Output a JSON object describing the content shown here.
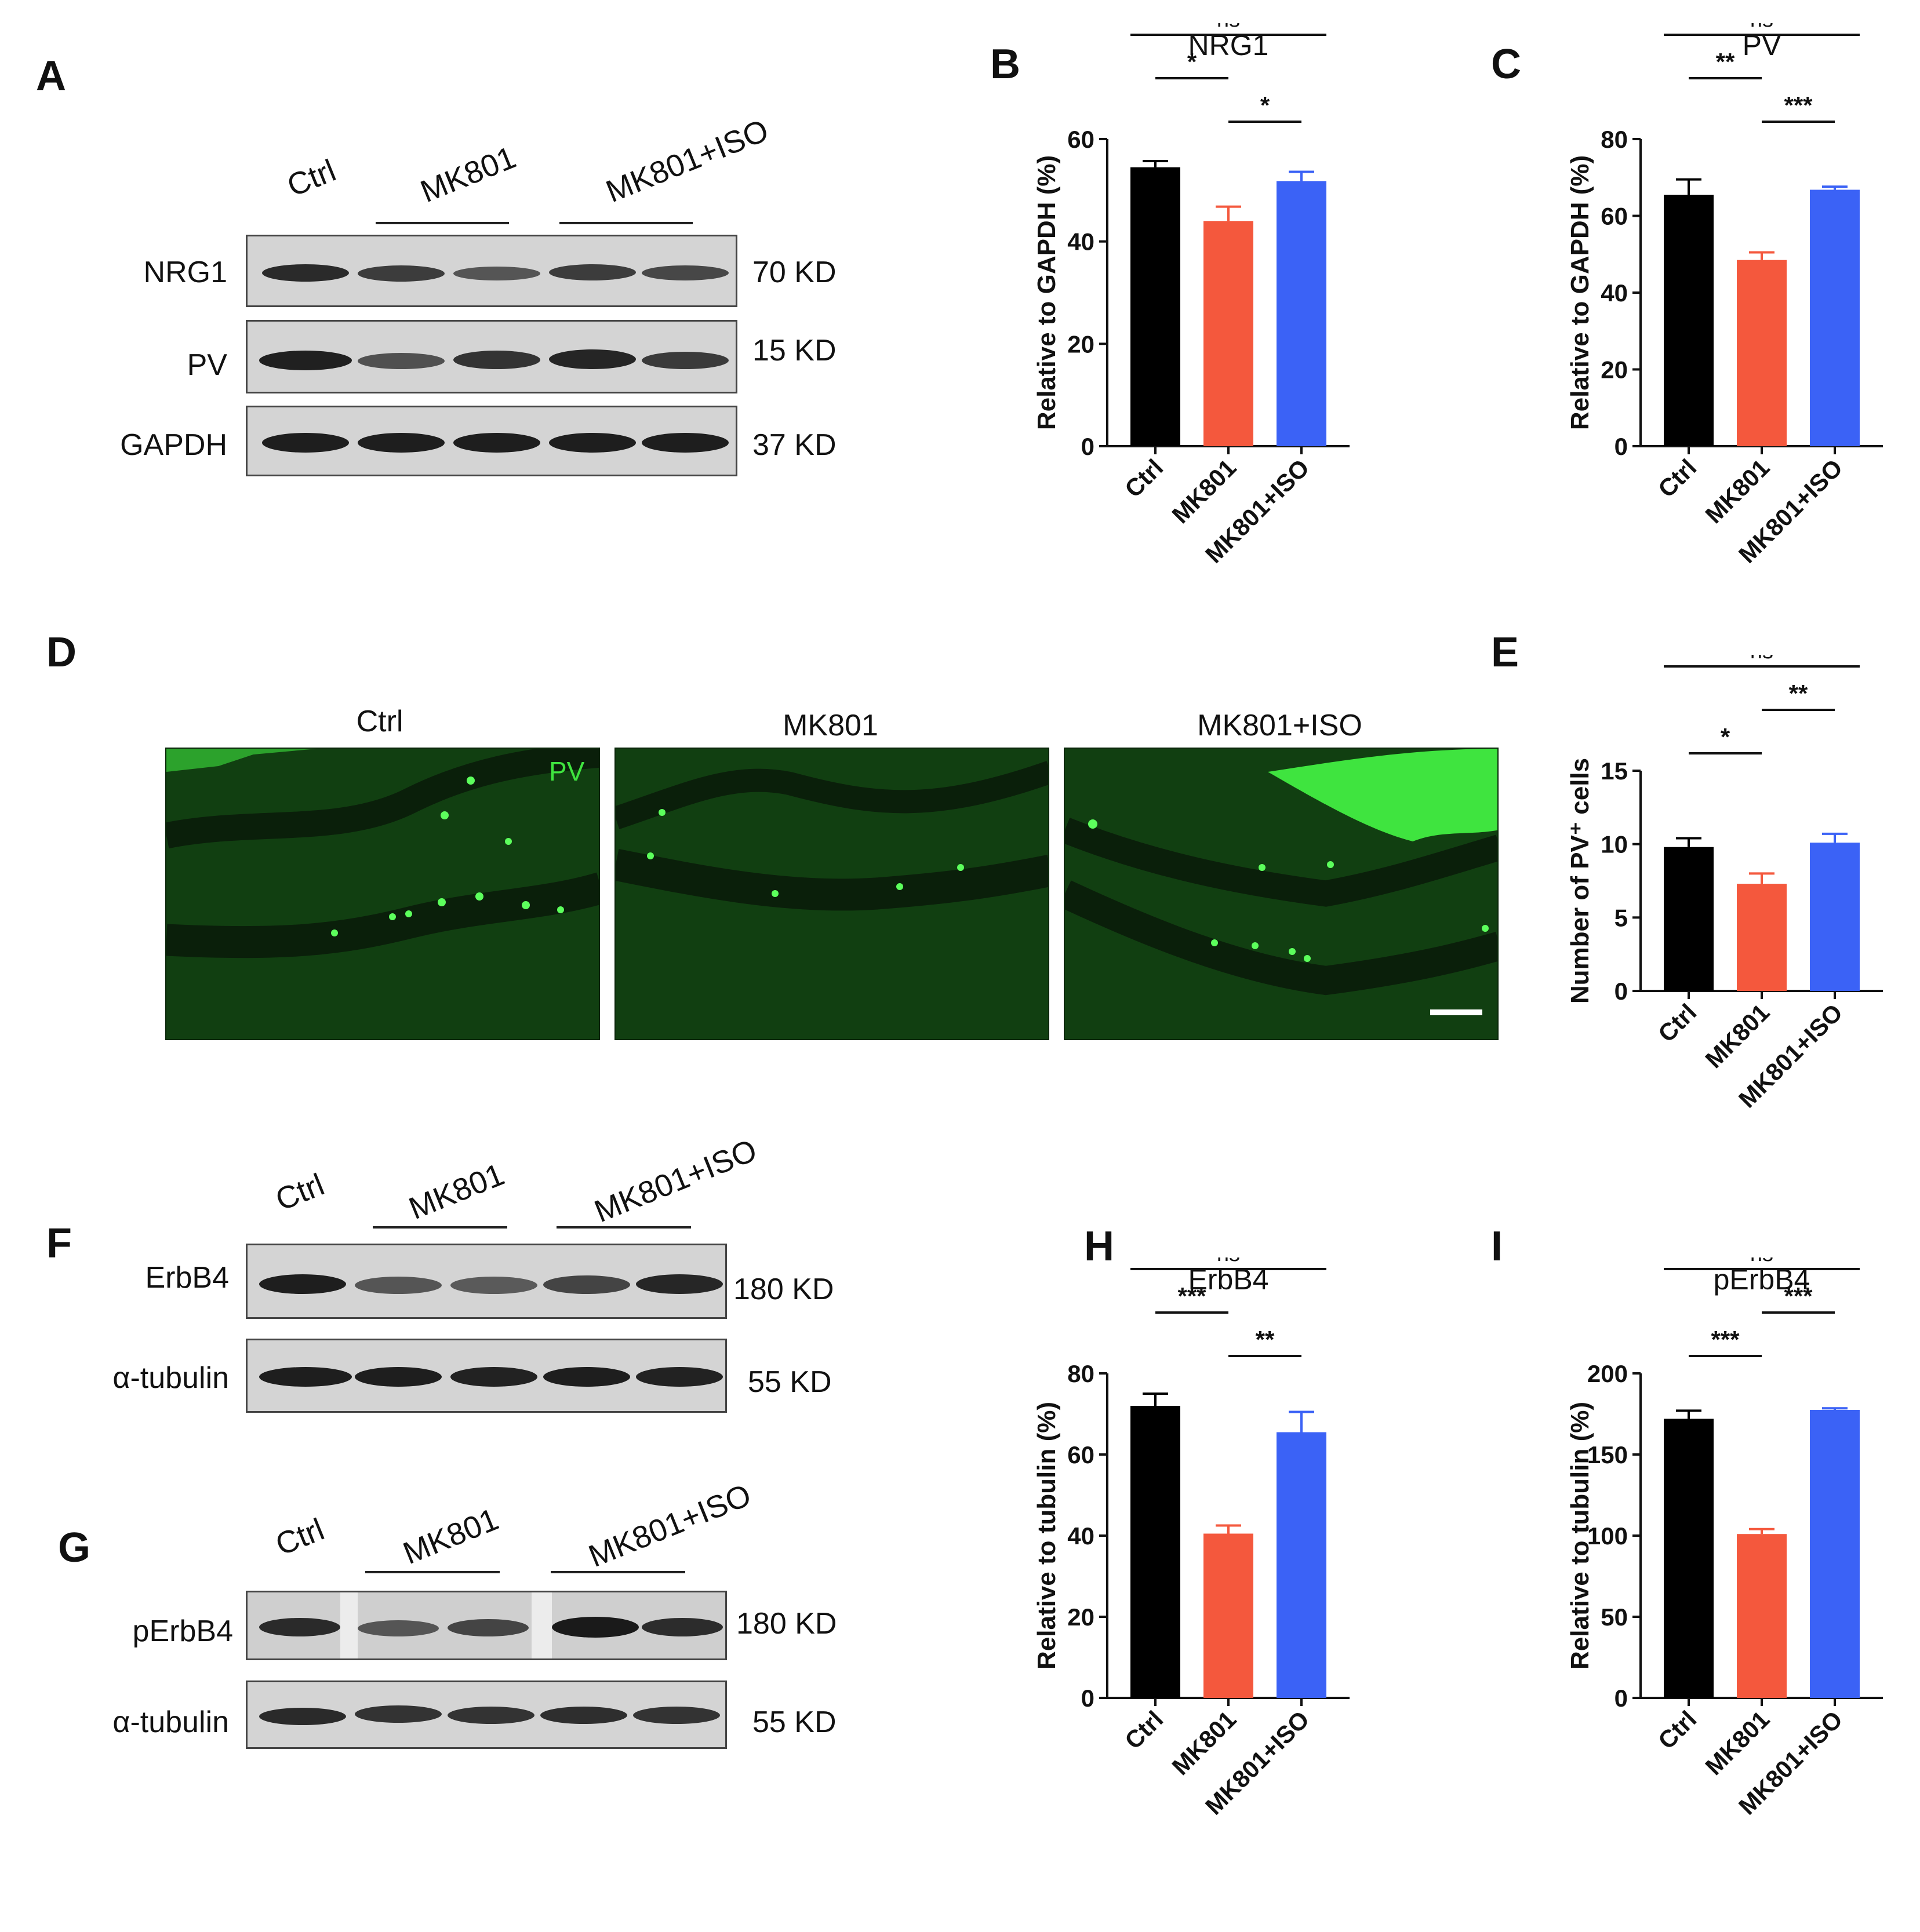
{
  "panels": {
    "A": "A",
    "B": "B",
    "C": "C",
    "D": "D",
    "E": "E",
    "F": "F",
    "G": "G",
    "H": "H",
    "I": "I"
  },
  "blot_A": {
    "lanes": [
      "Ctrl",
      "MK801",
      "MK801+ISO"
    ],
    "rows": [
      {
        "protein": "NRG1",
        "kd": "70 KD"
      },
      {
        "protein": "PV",
        "kd": "15 KD"
      },
      {
        "protein": "GAPDH",
        "kd": "37 KD"
      }
    ]
  },
  "blot_F": {
    "lanes": [
      "Ctrl",
      "MK801",
      "MK801+ISO"
    ],
    "rows": [
      {
        "protein": "ErbB4",
        "kd": "180 KD"
      },
      {
        "protein": "α-tubulin",
        "kd": "55 KD"
      }
    ]
  },
  "blot_G": {
    "lanes": [
      "Ctrl",
      "MK801",
      "MK801+ISO"
    ],
    "rows": [
      {
        "protein": "pErbB4",
        "kd": "180 KD"
      },
      {
        "protein": "α-tubulin",
        "kd": "55 KD"
      }
    ]
  },
  "micrographs": {
    "titles": [
      "Ctrl",
      "MK801",
      "MK801+ISO"
    ],
    "stain_label": "PV"
  },
  "colors": {
    "ctrl": "#000000",
    "mk801": "#f4583d",
    "iso": "#3b62f6",
    "fluor": "#3fe43f"
  },
  "chart_data": [
    {
      "id": "B",
      "type": "bar",
      "title": "NRG1",
      "ylabel": "Relative to GAPDH (%)",
      "categories": [
        "Ctrl",
        "MK801",
        "MK801+ISO"
      ],
      "values": [
        54.5,
        44,
        51.8
      ],
      "errors": [
        1.2,
        2.8,
        1.8
      ],
      "ylim": [
        0,
        60
      ],
      "yticks": [
        0,
        20,
        40,
        60
      ],
      "significance": [
        {
          "pair": [
            0,
            2
          ],
          "label": "ns",
          "level": 3
        },
        {
          "pair": [
            0,
            1
          ],
          "label": "*",
          "level": 2
        },
        {
          "pair": [
            1,
            2
          ],
          "label": "*",
          "level": 1
        }
      ]
    },
    {
      "id": "C",
      "type": "bar",
      "title": "PV",
      "ylabel": "Relative to GAPDH (%)",
      "categories": [
        "Ctrl",
        "MK801",
        "MK801+ISO"
      ],
      "values": [
        65.5,
        48.5,
        66.8
      ],
      "errors": [
        4,
        2,
        0.8
      ],
      "ylim": [
        0,
        80
      ],
      "yticks": [
        0,
        20,
        40,
        60,
        80
      ],
      "significance": [
        {
          "pair": [
            0,
            2
          ],
          "label": "ns",
          "level": 3
        },
        {
          "pair": [
            0,
            1
          ],
          "label": "**",
          "level": 2
        },
        {
          "pair": [
            1,
            2
          ],
          "label": "***",
          "level": 1
        }
      ]
    },
    {
      "id": "E",
      "type": "bar",
      "title": "",
      "ylabel": "Number of PV⁺ cells",
      "categories": [
        "Ctrl",
        "MK801",
        "MK801+ISO"
      ],
      "values": [
        9.8,
        7.3,
        10.1
      ],
      "errors": [
        0.6,
        0.7,
        0.6
      ],
      "ylim": [
        0,
        15
      ],
      "yticks": [
        0,
        5,
        10,
        15
      ],
      "significance": [
        {
          "pair": [
            0,
            2
          ],
          "label": "ns",
          "level": 3
        },
        {
          "pair": [
            0,
            1
          ],
          "label": "*",
          "level": 1
        },
        {
          "pair": [
            1,
            2
          ],
          "label": "**",
          "level": 2
        }
      ]
    },
    {
      "id": "H",
      "type": "bar",
      "title": "ErbB4",
      "ylabel": "Relative to tubulin (%)",
      "categories": [
        "Ctrl",
        "MK801",
        "MK801+ISO"
      ],
      "values": [
        72,
        40.5,
        65.5
      ],
      "errors": [
        3,
        2,
        5
      ],
      "ylim": [
        0,
        80
      ],
      "yticks": [
        0,
        20,
        40,
        60,
        80
      ],
      "significance": [
        {
          "pair": [
            0,
            2
          ],
          "label": "ns",
          "level": 3
        },
        {
          "pair": [
            0,
            1
          ],
          "label": "***",
          "level": 2
        },
        {
          "pair": [
            1,
            2
          ],
          "label": "**",
          "level": 1
        }
      ]
    },
    {
      "id": "I",
      "type": "bar",
      "title": "pErbB4",
      "ylabel": "Relative to tubulin (%)",
      "categories": [
        "Ctrl",
        "MK801",
        "MK801+ISO"
      ],
      "values": [
        172,
        101,
        177.5
      ],
      "errors": [
        5,
        3,
        1
      ],
      "ylim": [
        0,
        200
      ],
      "yticks": [
        0,
        50,
        100,
        150,
        200
      ],
      "significance": [
        {
          "pair": [
            0,
            2
          ],
          "label": "ns",
          "level": 3
        },
        {
          "pair": [
            0,
            1
          ],
          "label": "***",
          "level": 1
        },
        {
          "pair": [
            1,
            2
          ],
          "label": "***",
          "level": 2
        }
      ]
    }
  ]
}
